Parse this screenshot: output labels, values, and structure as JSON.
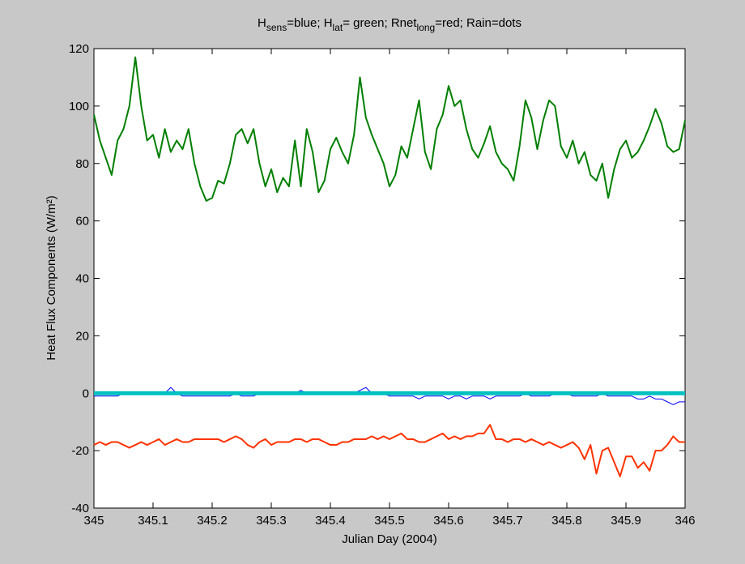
{
  "chart_data": {
    "type": "line",
    "title": [
      "H",
      "sens",
      "=blue;   H",
      "lat",
      "= green;   Rnet",
      "long",
      "=red;   Rain=dots"
    ],
    "xlabel": "Julian Day (2004)",
    "ylabel": "Heat Flux Components (W/m²)",
    "xlim": [
      345,
      346
    ],
    "ylim": [
      -40,
      120
    ],
    "xticks": [
      345,
      345.1,
      345.2,
      345.3,
      345.4,
      345.5,
      345.6,
      345.7,
      345.8,
      345.9,
      346
    ],
    "yticks": [
      -40,
      -20,
      0,
      20,
      40,
      60,
      80,
      100,
      120
    ],
    "x": [
      345,
      345.01,
      345.02,
      345.03,
      345.04,
      345.05,
      345.06,
      345.07,
      345.08,
      345.09,
      345.1,
      345.11,
      345.12,
      345.13,
      345.14,
      345.15,
      345.16,
      345.17,
      345.18,
      345.19,
      345.2,
      345.21,
      345.22,
      345.23,
      345.24,
      345.25,
      345.26,
      345.27,
      345.28,
      345.29,
      345.3,
      345.31,
      345.32,
      345.33,
      345.34,
      345.35,
      345.36,
      345.37,
      345.38,
      345.39,
      345.4,
      345.41,
      345.42,
      345.43,
      345.44,
      345.45,
      345.46,
      345.47,
      345.48,
      345.49,
      345.5,
      345.51,
      345.52,
      345.53,
      345.54,
      345.55,
      345.56,
      345.57,
      345.58,
      345.59,
      345.6,
      345.61,
      345.62,
      345.63,
      345.64,
      345.65,
      345.66,
      345.67,
      345.68,
      345.69,
      345.7,
      345.71,
      345.72,
      345.73,
      345.74,
      345.75,
      345.76,
      345.77,
      345.78,
      345.79,
      345.8,
      345.81,
      345.82,
      345.83,
      345.84,
      345.85,
      345.86,
      345.87,
      345.88,
      345.89,
      345.9,
      345.91,
      345.92,
      345.93,
      345.94,
      345.95,
      345.96,
      345.97,
      345.98,
      345.99,
      346
    ],
    "series": [
      {
        "color": "#007f00",
        "width": 2,
        "values": [
          97,
          88,
          82,
          76,
          88,
          92,
          100,
          117,
          100,
          88,
          90,
          82,
          92,
          84,
          88,
          85,
          92,
          80,
          72,
          67,
          68,
          74,
          73,
          80,
          90,
          92,
          87,
          92,
          80,
          72,
          78,
          70,
          75,
          72,
          88,
          72,
          92,
          84,
          70,
          74,
          85,
          89,
          84,
          80,
          90,
          110,
          96,
          90,
          85,
          80,
          72,
          76,
          86,
          82,
          92,
          102,
          84,
          78,
          92,
          97,
          107,
          100,
          102,
          92,
          85,
          82,
          87,
          93,
          84,
          80,
          78,
          74,
          86,
          102,
          96,
          85,
          95,
          102,
          100,
          86,
          82,
          88,
          80,
          84,
          76,
          74,
          80,
          68,
          78,
          85,
          88,
          82,
          84,
          88,
          93,
          99,
          94,
          86,
          84,
          85,
          95
        ]
      },
      {
        "color": "#ff3300",
        "width": 2,
        "values": [
          -18,
          -17,
          -18,
          -17,
          -17,
          -18,
          -19,
          -18,
          -17,
          -18,
          -17,
          -16,
          -18,
          -17,
          -16,
          -17,
          -17,
          -16,
          -16,
          -16,
          -16,
          -16,
          -17,
          -16,
          -15,
          -16,
          -18,
          -19,
          -17,
          -16,
          -18,
          -17,
          -17,
          -17,
          -16,
          -16,
          -17,
          -16,
          -16,
          -17,
          -18,
          -18,
          -17,
          -17,
          -16,
          -16,
          -16,
          -15,
          -16,
          -15,
          -16,
          -15,
          -14,
          -16,
          -16,
          -17,
          -17,
          -16,
          -15,
          -14,
          -16,
          -15,
          -16,
          -15,
          -15,
          -14,
          -14,
          -11,
          -16,
          -16,
          -17,
          -16,
          -16,
          -17,
          -16,
          -17,
          -18,
          -17,
          -18,
          -19,
          -18,
          -17,
          -19,
          -23,
          -18,
          -28,
          -20,
          -19,
          -24,
          -29,
          -22,
          -22,
          -26,
          -24,
          -27,
          -20,
          -20,
          -18,
          -15,
          -17,
          -17
        ]
      },
      {
        "color": "#0000ff",
        "width": 1,
        "values": [
          -1,
          -1,
          -1,
          -1,
          -1,
          0,
          0,
          0,
          0,
          0,
          0,
          0,
          0,
          2,
          0,
          -1,
          -1,
          -1,
          -1,
          -1,
          -1,
          -1,
          -1,
          -1,
          0,
          -1,
          -1,
          -1,
          0,
          0,
          0,
          0,
          0,
          0,
          0,
          1,
          0,
          0,
          0,
          0,
          0,
          0,
          0,
          0,
          0,
          1,
          2,
          0,
          0,
          0,
          -1,
          -1,
          -1,
          -1,
          -1,
          -2,
          -1,
          -1,
          -1,
          -1,
          -2,
          -1,
          -1,
          -2,
          -1,
          -1,
          -1,
          -2,
          -1,
          -1,
          -1,
          -1,
          -1,
          0,
          -1,
          -1,
          -1,
          -1,
          0,
          0,
          0,
          -1,
          -1,
          -1,
          -1,
          -1,
          0,
          -1,
          -1,
          -1,
          -1,
          -1,
          -2,
          -2,
          -1,
          -2,
          -2,
          -3,
          -4,
          -3,
          -3
        ]
      },
      {
        "color": "#00c0c0",
        "width": 5,
        "values": [
          0,
          0,
          0,
          0,
          0,
          0,
          0,
          0,
          0,
          0,
          0,
          0,
          0,
          0,
          0,
          0,
          0,
          0,
          0,
          0,
          0,
          0,
          0,
          0,
          0,
          0,
          0,
          0,
          0,
          0,
          0,
          0,
          0,
          0,
          0,
          0,
          0,
          0,
          0,
          0,
          0,
          0,
          0,
          0,
          0,
          0,
          0,
          0,
          0,
          0,
          0,
          0,
          0,
          0,
          0,
          0,
          0,
          0,
          0,
          0,
          0,
          0,
          0,
          0,
          0,
          0,
          0,
          0,
          0,
          0,
          0,
          0,
          0,
          0,
          0,
          0,
          0,
          0,
          0,
          0,
          0,
          0,
          0,
          0,
          0,
          0,
          0,
          0,
          0,
          0,
          0,
          0,
          0,
          0,
          0,
          0,
          0,
          0,
          0,
          0,
          0
        ]
      }
    ]
  }
}
